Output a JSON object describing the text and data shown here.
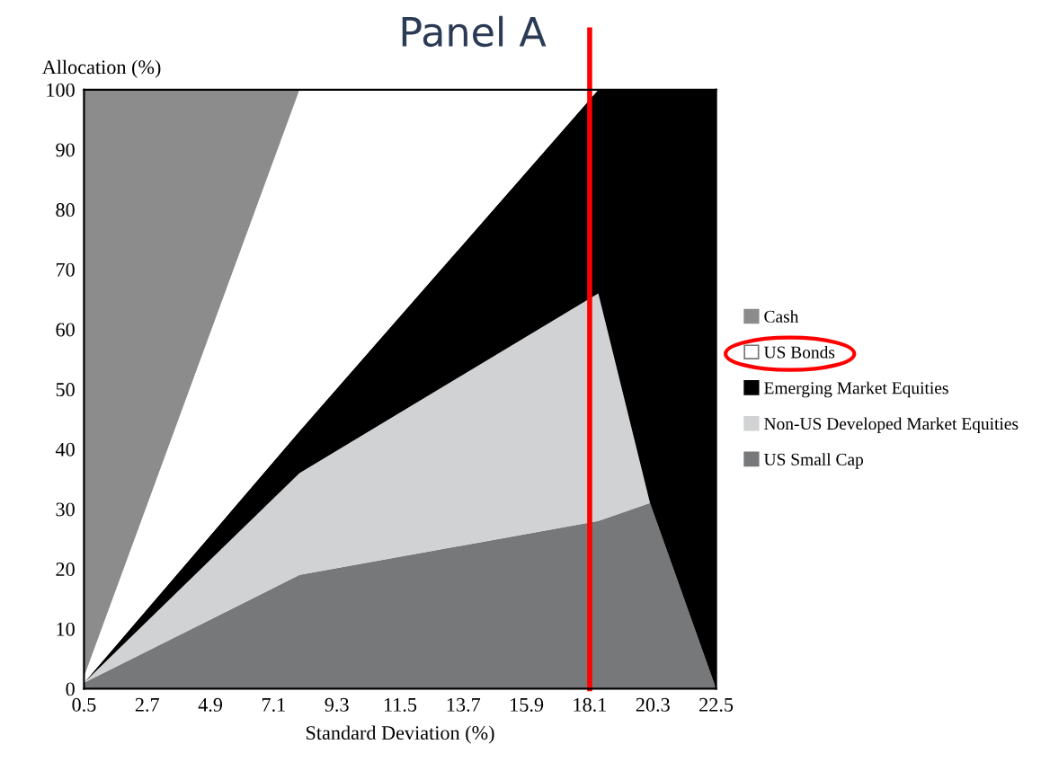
{
  "chart_data": {
    "type": "area",
    "stacked": true,
    "title": "Panel A",
    "xlabel": "Standard Deviation (%)",
    "ylabel": "Allocation (%)",
    "x": [
      0.5,
      8.0,
      18.4,
      20.2,
      22.5
    ],
    "series": [
      {
        "name": "US Small Cap",
        "color": "#77787a",
        "values": [
          1,
          19,
          28,
          31,
          0
        ]
      },
      {
        "name": "Non-US Developed Market Equities",
        "color": "#d0d2d4",
        "values": [
          0,
          17,
          38,
          0,
          0
        ]
      },
      {
        "name": "Emerging Market Equities",
        "color": "#000000",
        "values": [
          0,
          7,
          34,
          69,
          100
        ]
      },
      {
        "name": "US Bonds",
        "color": "#ffffff",
        "values": [
          1,
          57,
          0,
          0,
          0
        ]
      },
      {
        "name": "Cash",
        "color": "#8c8c8c",
        "values": [
          98,
          0,
          0,
          0,
          0
        ]
      }
    ],
    "xlim": [
      0.5,
      22.5
    ],
    "xticks": [
      0.5,
      2.7,
      4.9,
      7.1,
      9.3,
      11.5,
      13.7,
      15.9,
      18.1,
      20.3,
      22.5
    ],
    "ylim": [
      0,
      100
    ],
    "yticks": [
      0,
      10,
      20,
      30,
      40,
      50,
      60,
      70,
      80,
      90,
      100
    ],
    "ref_lines": [
      {
        "axis": "x",
        "value": 18.1,
        "color": "#ff0000"
      }
    ],
    "grid": false,
    "legend": "right"
  }
}
